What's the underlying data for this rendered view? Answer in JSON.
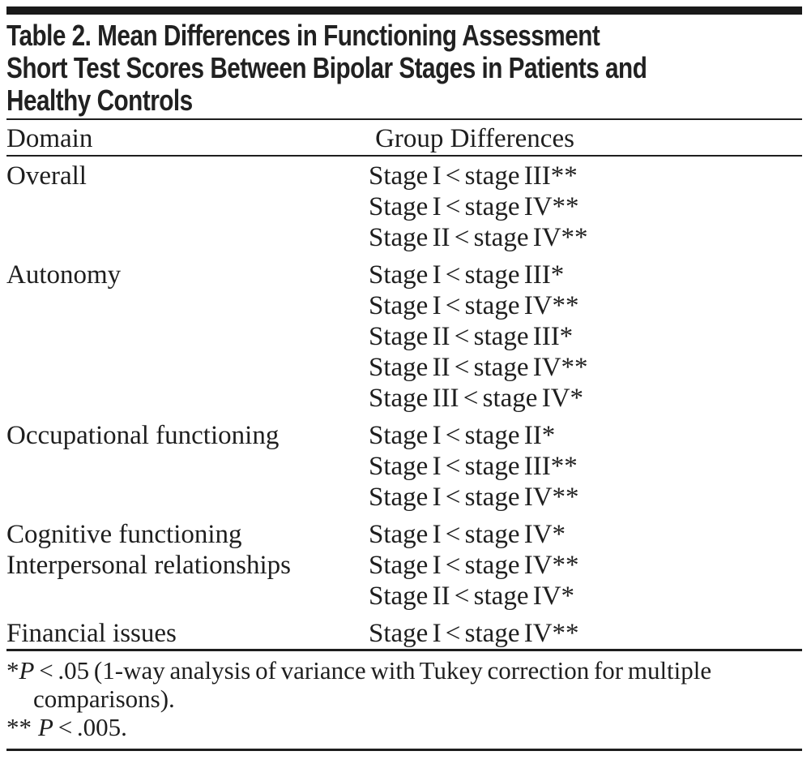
{
  "title": {
    "lines": [
      "Table 2. Mean Differences in Functioning Assessment",
      "Short Test Scores Between Bipolar Stages in Patients and",
      "Healthy Controls"
    ]
  },
  "columns": {
    "domain": "Domain",
    "group_differences": "Group Differences"
  },
  "rows": [
    {
      "domain": "Overall",
      "comparisons": [
        "Stage I < stage III**",
        "Stage I < stage IV**",
        "Stage II < stage IV**"
      ]
    },
    {
      "domain": "Autonomy",
      "comparisons": [
        "Stage I < stage III*",
        "Stage I < stage IV**",
        "Stage II < stage III*",
        "Stage II < stage IV**",
        "Stage III < stage IV*"
      ]
    },
    {
      "domain": "Occupational functioning",
      "comparisons": [
        "Stage I < stage II*",
        "Stage I < stage III**",
        "Stage I < stage IV**"
      ]
    },
    {
      "domain": "Cognitive functioning",
      "comparisons": [
        "Stage I < stage IV*"
      ]
    },
    {
      "domain": "Interpersonal relationships",
      "comparisons": [
        "Stage I < stage IV**",
        "Stage II < stage IV*"
      ]
    },
    {
      "domain": "Financial issues",
      "comparisons": [
        "Stage I < stage IV**"
      ]
    }
  ],
  "footnotes": [
    {
      "marker": "*",
      "p_symbol": "P",
      "text": " < .05 (1-way analysis of variance with Tukey correction for multiple",
      "continuation": "comparisons)."
    },
    {
      "marker": "**",
      "p_symbol": "P",
      "text": " < .005."
    }
  ],
  "colors": {
    "text": "#1e1e1e",
    "rule": "#1e1e1e",
    "background": "#ffffff"
  }
}
